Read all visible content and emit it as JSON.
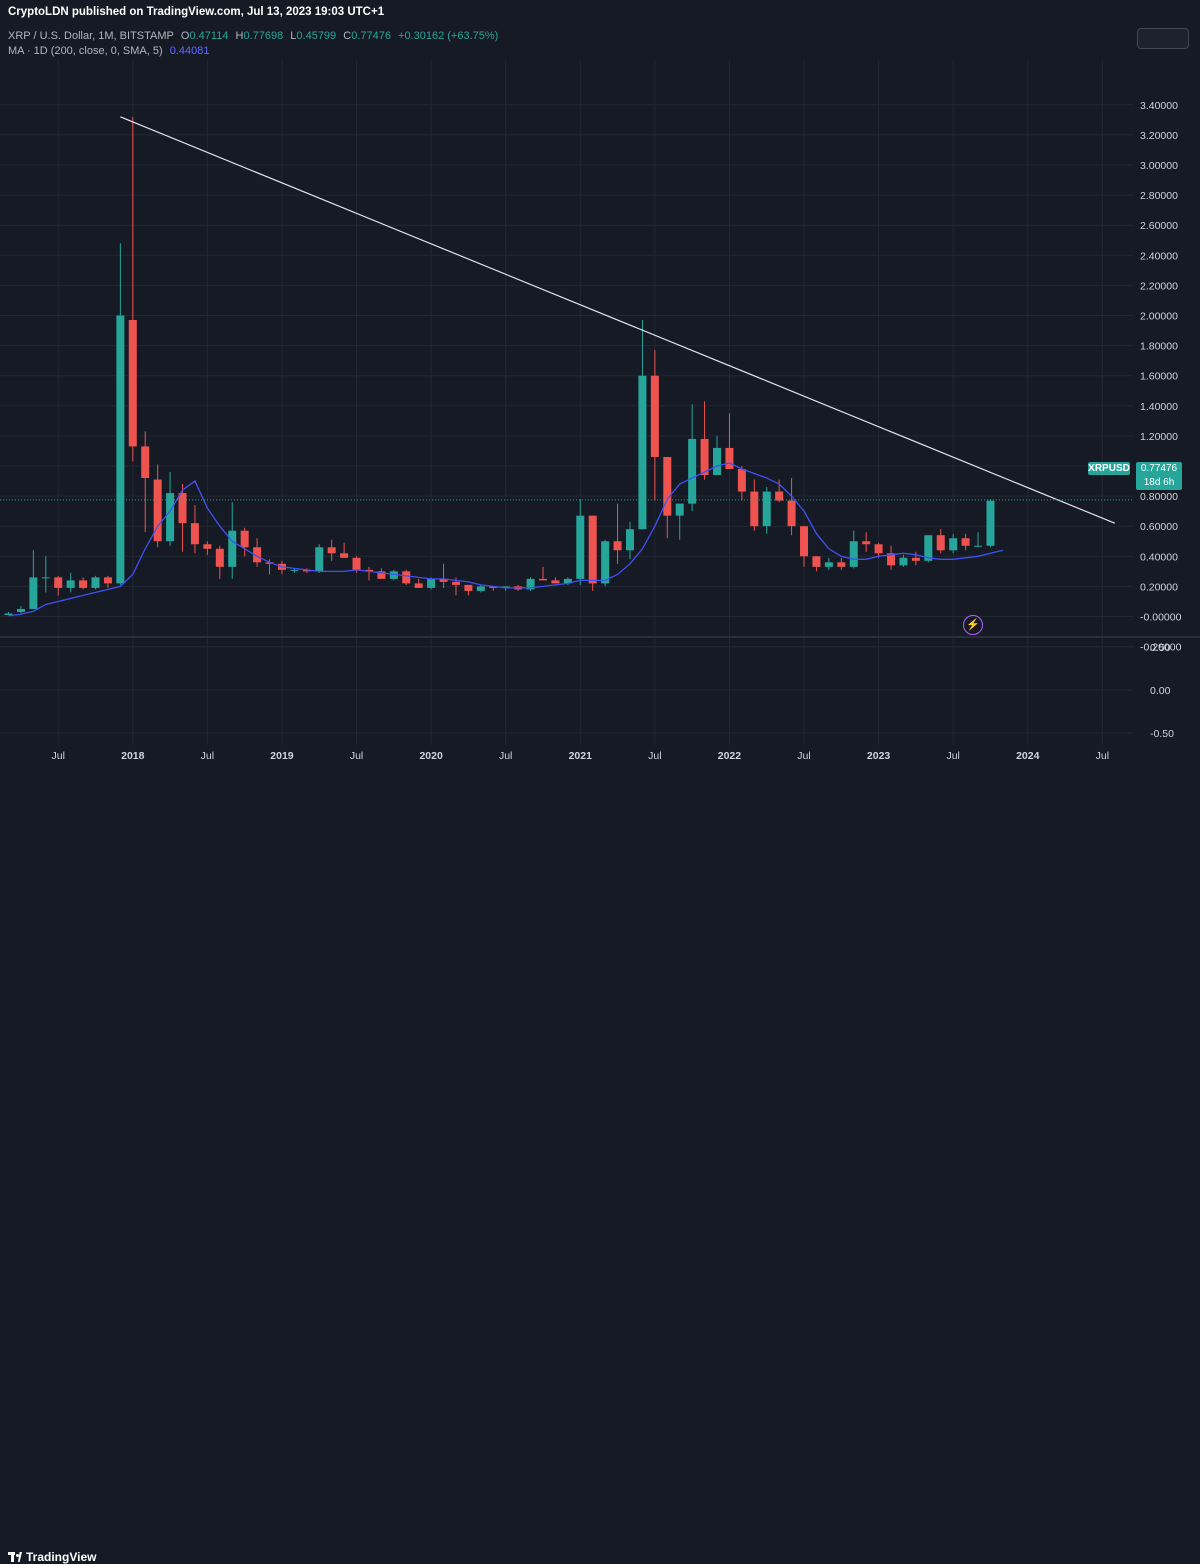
{
  "header": {
    "published_by": "CryptoLDN published on TradingView.com, Jul 13, 2023 19:03 UTC+1"
  },
  "legend": {
    "symbol": "XRP / U.S. Dollar, 1M, BITSTAMP",
    "open_label": "O",
    "open": "0.47114",
    "high_label": "H",
    "high": "0.77698",
    "low_label": "L",
    "low": "0.45799",
    "close_label": "C",
    "close": "0.77476",
    "change": "+0.30162 (+63.75%)",
    "ma_label": "MA · 1D (200, close, 0, SMA, 5)",
    "ma_value": "0.44081"
  },
  "price_tag": {
    "symbol": "XRPUSD",
    "last": "0.77476",
    "countdown": "18d 6h"
  },
  "footer": {
    "brand": "TradingView"
  },
  "colors": {
    "background": "#161a25",
    "grid": "#232733",
    "up": "#26a69a",
    "down": "#ef5350",
    "ma": "#3f51f5",
    "trendline": "#e0e3eb",
    "axis_text": "#d1d4dc"
  },
  "chart_data": [
    {
      "type": "candlestick",
      "title": "XRP / U.S. Dollar, 1M, BITSTAMP",
      "x_tick_labels": [
        "Jul",
        "2018",
        "Jul",
        "2019",
        "Jul",
        "2020",
        "Jul",
        "2021",
        "Jul",
        "2022",
        "Jul",
        "2023",
        "Jul",
        "2024",
        "Jul"
      ],
      "y_tick_labels": [
        "3.40000",
        "3.20000",
        "3.00000",
        "2.80000",
        "2.60000",
        "2.40000",
        "2.20000",
        "2.00000",
        "1.80000",
        "1.60000",
        "1.40000",
        "1.20000",
        "1.00000",
        "0.80000",
        "0.60000",
        "0.40000",
        "0.20000",
        "-0.00000",
        "-0.20000"
      ],
      "ylim": [
        -0.28,
        3.55
      ],
      "grid": true,
      "start_month": "2017-03",
      "candles": [
        {
          "o": 0.01,
          "h": 0.03,
          "l": 0.01,
          "c": 0.02
        },
        {
          "o": 0.03,
          "h": 0.07,
          "l": 0.02,
          "c": 0.05
        },
        {
          "o": 0.05,
          "h": 0.44,
          "l": 0.05,
          "c": 0.26
        },
        {
          "o": 0.26,
          "h": 0.4,
          "l": 0.16,
          "c": 0.26
        },
        {
          "o": 0.26,
          "h": 0.27,
          "l": 0.14,
          "c": 0.19
        },
        {
          "o": 0.19,
          "h": 0.29,
          "l": 0.16,
          "c": 0.24
        },
        {
          "o": 0.24,
          "h": 0.26,
          "l": 0.18,
          "c": 0.19
        },
        {
          "o": 0.19,
          "h": 0.27,
          "l": 0.18,
          "c": 0.26
        },
        {
          "o": 0.26,
          "h": 0.27,
          "l": 0.19,
          "c": 0.22
        },
        {
          "o": 0.22,
          "h": 2.48,
          "l": 0.21,
          "c": 2.0
        },
        {
          "o": 1.97,
          "h": 3.32,
          "l": 1.03,
          "c": 1.13
        },
        {
          "o": 1.13,
          "h": 1.23,
          "l": 0.56,
          "c": 0.92
        },
        {
          "o": 0.91,
          "h": 1.01,
          "l": 0.46,
          "c": 0.5
        },
        {
          "o": 0.5,
          "h": 0.96,
          "l": 0.47,
          "c": 0.82
        },
        {
          "o": 0.82,
          "h": 0.88,
          "l": 0.43,
          "c": 0.62
        },
        {
          "o": 0.62,
          "h": 0.74,
          "l": 0.42,
          "c": 0.48
        },
        {
          "o": 0.48,
          "h": 0.5,
          "l": 0.41,
          "c": 0.45
        },
        {
          "o": 0.45,
          "h": 0.47,
          "l": 0.25,
          "c": 0.33
        },
        {
          "o": 0.33,
          "h": 0.76,
          "l": 0.25,
          "c": 0.57
        },
        {
          "o": 0.57,
          "h": 0.59,
          "l": 0.4,
          "c": 0.46
        },
        {
          "o": 0.46,
          "h": 0.52,
          "l": 0.33,
          "c": 0.36
        },
        {
          "o": 0.36,
          "h": 0.38,
          "l": 0.28,
          "c": 0.35
        },
        {
          "o": 0.35,
          "h": 0.37,
          "l": 0.28,
          "c": 0.31
        },
        {
          "o": 0.31,
          "h": 0.32,
          "l": 0.29,
          "c": 0.31
        },
        {
          "o": 0.31,
          "h": 0.32,
          "l": 0.29,
          "c": 0.3
        },
        {
          "o": 0.3,
          "h": 0.48,
          "l": 0.29,
          "c": 0.46
        },
        {
          "o": 0.46,
          "h": 0.51,
          "l": 0.37,
          "c": 0.42
        },
        {
          "o": 0.42,
          "h": 0.49,
          "l": 0.39,
          "c": 0.39
        },
        {
          "o": 0.39,
          "h": 0.4,
          "l": 0.29,
          "c": 0.31
        },
        {
          "o": 0.31,
          "h": 0.33,
          "l": 0.24,
          "c": 0.3
        },
        {
          "o": 0.3,
          "h": 0.32,
          "l": 0.26,
          "c": 0.25
        },
        {
          "o": 0.25,
          "h": 0.31,
          "l": 0.24,
          "c": 0.3
        },
        {
          "o": 0.3,
          "h": 0.31,
          "l": 0.21,
          "c": 0.22
        },
        {
          "o": 0.22,
          "h": 0.25,
          "l": 0.19,
          "c": 0.19
        },
        {
          "o": 0.19,
          "h": 0.26,
          "l": 0.18,
          "c": 0.25
        },
        {
          "o": 0.25,
          "h": 0.35,
          "l": 0.19,
          "c": 0.23
        },
        {
          "o": 0.23,
          "h": 0.26,
          "l": 0.14,
          "c": 0.21
        },
        {
          "o": 0.21,
          "h": 0.21,
          "l": 0.14,
          "c": 0.17
        },
        {
          "o": 0.17,
          "h": 0.21,
          "l": 0.16,
          "c": 0.2
        },
        {
          "o": 0.2,
          "h": 0.2,
          "l": 0.17,
          "c": 0.19
        },
        {
          "o": 0.19,
          "h": 0.2,
          "l": 0.17,
          "c": 0.2
        },
        {
          "o": 0.2,
          "h": 0.21,
          "l": 0.17,
          "c": 0.18
        },
        {
          "o": 0.18,
          "h": 0.26,
          "l": 0.17,
          "c": 0.25
        },
        {
          "o": 0.25,
          "h": 0.33,
          "l": 0.24,
          "c": 0.24
        },
        {
          "o": 0.24,
          "h": 0.26,
          "l": 0.22,
          "c": 0.22
        },
        {
          "o": 0.22,
          "h": 0.26,
          "l": 0.21,
          "c": 0.25
        },
        {
          "o": 0.25,
          "h": 0.78,
          "l": 0.21,
          "c": 0.67
        },
        {
          "o": 0.67,
          "h": 0.67,
          "l": 0.17,
          "c": 0.22
        },
        {
          "o": 0.22,
          "h": 0.51,
          "l": 0.2,
          "c": 0.5
        },
        {
          "o": 0.5,
          "h": 0.75,
          "l": 0.35,
          "c": 0.44
        },
        {
          "o": 0.44,
          "h": 0.63,
          "l": 0.38,
          "c": 0.58
        },
        {
          "o": 0.58,
          "h": 1.97,
          "l": 0.58,
          "c": 1.6
        },
        {
          "o": 1.6,
          "h": 1.77,
          "l": 0.77,
          "c": 1.06
        },
        {
          "o": 1.06,
          "h": 1.06,
          "l": 0.52,
          "c": 0.67
        },
        {
          "o": 0.67,
          "h": 0.75,
          "l": 0.51,
          "c": 0.75
        },
        {
          "o": 0.75,
          "h": 1.41,
          "l": 0.7,
          "c": 1.18
        },
        {
          "o": 1.18,
          "h": 1.43,
          "l": 0.91,
          "c": 0.94
        },
        {
          "o": 0.94,
          "h": 1.2,
          "l": 0.94,
          "c": 1.12
        },
        {
          "o": 1.12,
          "h": 1.35,
          "l": 0.99,
          "c": 0.98
        },
        {
          "o": 0.98,
          "h": 1.0,
          "l": 0.77,
          "c": 0.83
        },
        {
          "o": 0.83,
          "h": 0.91,
          "l": 0.57,
          "c": 0.6
        },
        {
          "o": 0.6,
          "h": 0.86,
          "l": 0.55,
          "c": 0.83
        },
        {
          "o": 0.83,
          "h": 0.91,
          "l": 0.76,
          "c": 0.77
        },
        {
          "o": 0.77,
          "h": 0.92,
          "l": 0.54,
          "c": 0.6
        },
        {
          "o": 0.6,
          "h": 0.6,
          "l": 0.33,
          "c": 0.4
        },
        {
          "o": 0.4,
          "h": 0.4,
          "l": 0.3,
          "c": 0.33
        },
        {
          "o": 0.33,
          "h": 0.39,
          "l": 0.31,
          "c": 0.36
        },
        {
          "o": 0.36,
          "h": 0.39,
          "l": 0.31,
          "c": 0.33
        },
        {
          "o": 0.33,
          "h": 0.57,
          "l": 0.32,
          "c": 0.5
        },
        {
          "o": 0.5,
          "h": 0.56,
          "l": 0.43,
          "c": 0.48
        },
        {
          "o": 0.48,
          "h": 0.49,
          "l": 0.39,
          "c": 0.42
        },
        {
          "o": 0.42,
          "h": 0.47,
          "l": 0.31,
          "c": 0.34
        },
        {
          "o": 0.34,
          "h": 0.41,
          "l": 0.33,
          "c": 0.39
        },
        {
          "o": 0.39,
          "h": 0.43,
          "l": 0.34,
          "c": 0.37
        },
        {
          "o": 0.37,
          "h": 0.54,
          "l": 0.36,
          "c": 0.54
        },
        {
          "o": 0.54,
          "h": 0.58,
          "l": 0.42,
          "c": 0.44
        },
        {
          "o": 0.44,
          "h": 0.55,
          "l": 0.42,
          "c": 0.52
        },
        {
          "o": 0.52,
          "h": 0.55,
          "l": 0.44,
          "c": 0.47
        },
        {
          "o": 0.47,
          "h": 0.56,
          "l": 0.46,
          "c": 0.47
        },
        {
          "o": 0.47,
          "h": 0.78,
          "l": 0.46,
          "c": 0.77
        }
      ],
      "ma_series": {
        "name": "MA · 1D (200, close, 0, SMA, 5)",
        "values": [
          0.005,
          0.015,
          0.035,
          0.08,
          0.1,
          0.12,
          0.14,
          0.16,
          0.18,
          0.2,
          0.28,
          0.45,
          0.6,
          0.7,
          0.84,
          0.9,
          0.72,
          0.6,
          0.5,
          0.45,
          0.4,
          0.36,
          0.33,
          0.32,
          0.31,
          0.3,
          0.3,
          0.3,
          0.31,
          0.3,
          0.29,
          0.28,
          0.27,
          0.26,
          0.25,
          0.25,
          0.24,
          0.23,
          0.21,
          0.2,
          0.19,
          0.19,
          0.19,
          0.2,
          0.21,
          0.22,
          0.24,
          0.24,
          0.24,
          0.28,
          0.35,
          0.45,
          0.6,
          0.78,
          0.88,
          0.92,
          0.96,
          1.0,
          1.02,
          0.98,
          0.95,
          0.92,
          0.88,
          0.8,
          0.7,
          0.55,
          0.45,
          0.4,
          0.38,
          0.38,
          0.4,
          0.41,
          0.42,
          0.41,
          0.39,
          0.38,
          0.38,
          0.39,
          0.4,
          0.42,
          0.44
        ]
      },
      "trendline": {
        "from": {
          "month": "2017-12",
          "price": 3.32
        },
        "to": {
          "month": "2024-08",
          "price": 0.62
        }
      },
      "last_price_line": 0.77476
    },
    {
      "type": "line",
      "title": "",
      "y_tick_labels": [
        "0.50",
        "0.00",
        "-0.50"
      ],
      "ylim": [
        -0.6,
        0.6
      ],
      "grid": true,
      "values": []
    }
  ]
}
